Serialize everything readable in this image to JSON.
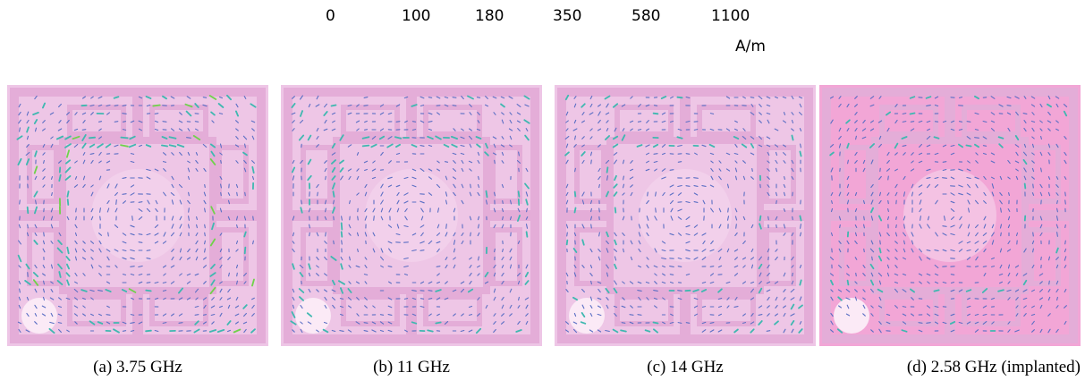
{
  "scale": {
    "ticks": [
      "0",
      "100",
      "180",
      "350",
      "580",
      "1100"
    ],
    "unit": "A/m"
  },
  "panels": [
    {
      "caption": "(a) 3.75 GHz",
      "intensity": 0.85
    },
    {
      "caption": "(b) 11 GHz",
      "intensity": 0.6
    },
    {
      "caption": "(c) 14 GHz",
      "intensity": 0.4
    },
    {
      "caption": "(d) 2.58 GHz (implanted)",
      "intensity": 0.35
    }
  ],
  "colors": {
    "substrate": "#eec6e6",
    "substrate_implanted": "#f2a6d6",
    "patch": "#e4add8",
    "arrow_low": "#5b6fc4",
    "arrow_mid": "#3fb8b0",
    "arrow_high": "#6fd24a"
  }
}
